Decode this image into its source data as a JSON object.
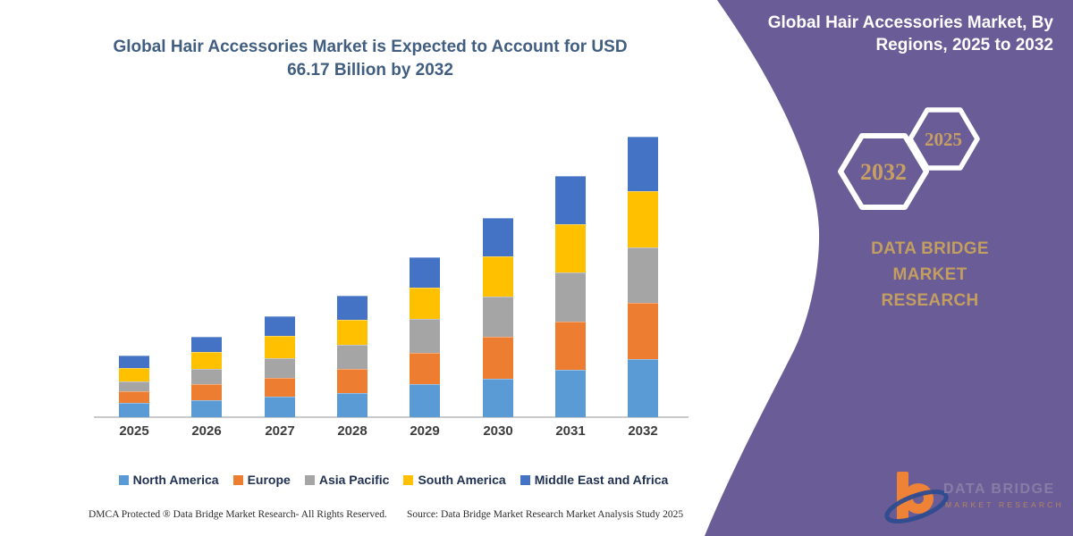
{
  "chart_data": {
    "type": "bar",
    "stacked": true,
    "title": "Global Hair Accessories Market is Expected to Account for USD 66.17 Billion by 2032",
    "title_lines": [
      "Global Hair Accessories Market is Expected to Account for USD",
      "66.17 Billion by 2032"
    ],
    "categories": [
      "2025",
      "2026",
      "2027",
      "2028",
      "2029",
      "2030",
      "2031",
      "2032"
    ],
    "series": [
      {
        "name": "North America",
        "color": "#5B9BD5",
        "values": [
          3.3,
          4.1,
          4.9,
          5.8,
          7.8,
          9.0,
          11.1,
          13.8
        ]
      },
      {
        "name": "Europe",
        "color": "#ED7D31",
        "values": [
          2.8,
          3.7,
          4.4,
          5.6,
          7.4,
          10.0,
          11.4,
          13.2
        ]
      },
      {
        "name": "Asia Pacific",
        "color": "#A5A5A5",
        "values": [
          2.3,
          3.6,
          4.7,
          5.6,
          7.9,
          9.5,
          11.6,
          13.0
        ]
      },
      {
        "name": "South America",
        "color": "#FFC000",
        "values": [
          3.1,
          4.0,
          5.1,
          6.0,
          7.4,
          9.5,
          11.4,
          13.3
        ]
      },
      {
        "name": "Middle East and Africa",
        "color": "#4472C4",
        "values": [
          3.0,
          3.5,
          4.7,
          5.6,
          7.3,
          9.0,
          11.4,
          12.87
        ]
      }
    ],
    "units": "USD billion (estimated from bar heights; no value axis shown)",
    "annotations": [
      "2032 total = USD 66.17 billion"
    ],
    "xlabel": "",
    "ylabel": "",
    "y_axis_shown": false,
    "grid": false,
    "legend_position": "bottom"
  },
  "footer": {
    "left": "DMCA Protected ® Data Bridge Market Research-  All Rights Reserved.",
    "right": "Source: Data Bridge Market Research  Market Analysis Study 2025"
  },
  "right_panel": {
    "bg_color": "#6A5C96",
    "title": "Global Hair Accessories Market, By Regions, 2025 to 2032",
    "title_lines": [
      "Global Hair Accessories Market, By",
      "Regions, 2025 to 2032"
    ],
    "hex_large_year": "2032",
    "hex_small_year": "2025",
    "brand_line1": "DATA BRIDGE MARKET",
    "brand_line2": "RESEARCH",
    "accent_text_color": "#C29E60",
    "logo": {
      "name": "DATA BRIDGE",
      "subtitle": "MARKET RESEARCH"
    }
  }
}
